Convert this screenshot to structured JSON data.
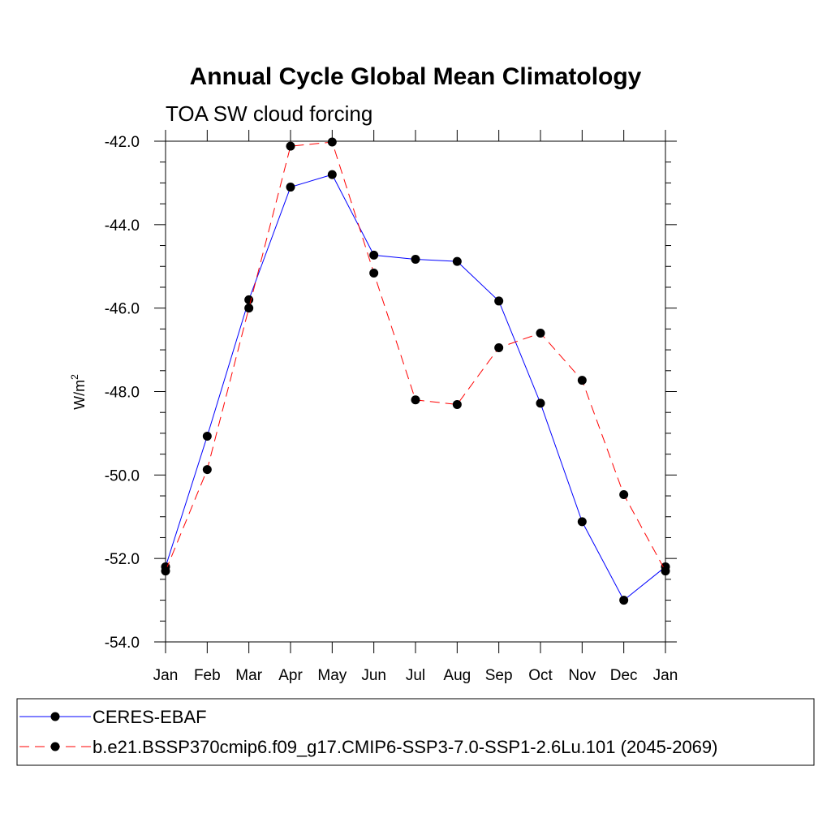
{
  "chart_data": {
    "type": "line",
    "title": "Annual Cycle Global Mean Climatology",
    "subtitle": "TOA SW cloud forcing",
    "ylabel": "W/m",
    "ylabel_superscript": "2",
    "xlabel": "",
    "categories": [
      "Jan",
      "Feb",
      "Mar",
      "Apr",
      "May",
      "Jun",
      "Jul",
      "Aug",
      "Sep",
      "Oct",
      "Nov",
      "Dec",
      "Jan"
    ],
    "ylim": [
      -54,
      -42
    ],
    "yticks": [
      -42,
      -44,
      -46,
      -48,
      -50,
      -52,
      -54
    ],
    "ytick_labels": [
      "-42.0",
      "-44.0",
      "-46.0",
      "-48.0",
      "-50.0",
      "-52.0",
      "-54.0"
    ],
    "grid": false,
    "legend_position": "bottom",
    "series": [
      {
        "name": "CERES-EBAF",
        "color": "#0000ff",
        "style": "solid",
        "marker": "filled-circle",
        "values": [
          -52.2,
          -49.07,
          -45.8,
          -43.1,
          -42.8,
          -44.73,
          -44.83,
          -44.88,
          -45.83,
          -48.28,
          -51.12,
          -53.0,
          -52.2
        ]
      },
      {
        "name": "b.e21.BSSP370cmip6.f09_g17.CMIP6-SSP3-7.0-SSP1-2.6Lu.101 (2045-2069)",
        "color": "#ff0000",
        "style": "dashed",
        "marker": "filled-circle",
        "values": [
          -52.3,
          -49.87,
          -46.0,
          -42.12,
          -42.02,
          -45.16,
          -48.2,
          -48.31,
          -46.95,
          -46.6,
          -47.73,
          -50.47,
          -52.3
        ]
      }
    ]
  }
}
